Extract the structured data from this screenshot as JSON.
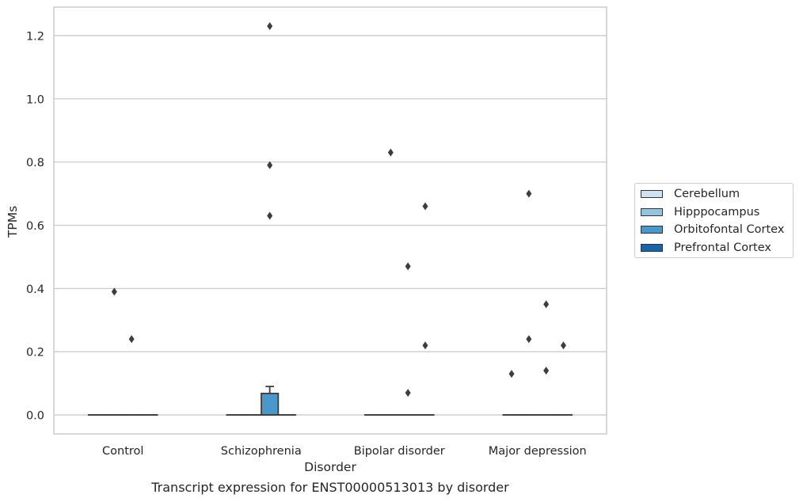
{
  "chart_data": {
    "type": "box",
    "title": "",
    "caption": "Transcript expression for ENST00000513013 by disorder",
    "xlabel": "Disorder",
    "ylabel": "TPMs",
    "ylim": [
      -0.06,
      1.29
    ],
    "yticks": [
      0.0,
      0.2,
      0.4,
      0.6,
      0.8,
      1.0,
      1.2
    ],
    "ytick_labels": [
      "0.0",
      "0.2",
      "0.4",
      "0.6",
      "0.8",
      "1.0",
      "1.2"
    ],
    "categories": [
      "Control",
      "Schizophrenia",
      "Bipolar disorder",
      "Major depression"
    ],
    "grid": "horizontal",
    "legend_position": "right",
    "series": [
      {
        "name": "Cerebellum",
        "color": "#d0e1f2",
        "boxes": [
          {
            "category": "Control",
            "q1": 0,
            "median": 0,
            "q3": 0,
            "whisker_low": 0,
            "whisker_high": 0,
            "outliers": []
          },
          {
            "category": "Schizophrenia",
            "q1": 0,
            "median": 0,
            "q3": 0,
            "whisker_low": 0,
            "whisker_high": 0,
            "outliers": []
          },
          {
            "category": "Bipolar disorder",
            "q1": 0,
            "median": 0,
            "q3": 0,
            "whisker_low": 0,
            "whisker_high": 0,
            "outliers": []
          },
          {
            "category": "Major depression",
            "q1": 0,
            "median": 0,
            "q3": 0,
            "whisker_low": 0,
            "whisker_high": 0,
            "outliers": [
              0.13
            ]
          }
        ]
      },
      {
        "name": "Hipppocampus",
        "color": "#94c4df",
        "boxes": [
          {
            "category": "Control",
            "q1": 0,
            "median": 0,
            "q3": 0,
            "whisker_low": 0,
            "whisker_high": 0,
            "outliers": [
              0.39
            ]
          },
          {
            "category": "Schizophrenia",
            "q1": 0,
            "median": 0,
            "q3": 0,
            "whisker_low": 0,
            "whisker_high": 0,
            "outliers": []
          },
          {
            "category": "Bipolar disorder",
            "q1": 0,
            "median": 0,
            "q3": 0,
            "whisker_low": 0,
            "whisker_high": 0,
            "outliers": [
              0.83
            ]
          },
          {
            "category": "Major depression",
            "q1": 0,
            "median": 0,
            "q3": 0,
            "whisker_low": 0,
            "whisker_high": 0,
            "outliers": [
              0.7,
              0.24
            ]
          }
        ]
      },
      {
        "name": "Orbitofontal Cortex",
        "color": "#4a98c9",
        "boxes": [
          {
            "category": "Control",
            "q1": 0,
            "median": 0,
            "q3": 0,
            "whisker_low": 0,
            "whisker_high": 0,
            "outliers": [
              0.24
            ]
          },
          {
            "category": "Schizophrenia",
            "q1": 0,
            "median": 0,
            "q3": 0.068,
            "whisker_low": 0,
            "whisker_high": 0.09,
            "outliers": [
              1.23,
              0.79,
              0.63
            ]
          },
          {
            "category": "Bipolar disorder",
            "q1": 0,
            "median": 0,
            "q3": 0,
            "whisker_low": 0,
            "whisker_high": 0,
            "outliers": [
              0.47,
              0.07
            ]
          },
          {
            "category": "Major depression",
            "q1": 0,
            "median": 0,
            "q3": 0,
            "whisker_low": 0,
            "whisker_high": 0,
            "outliers": [
              0.35,
              0.14
            ]
          }
        ]
      },
      {
        "name": "Prefrontal Cortex",
        "color": "#1764ab",
        "boxes": [
          {
            "category": "Control",
            "q1": 0,
            "median": 0,
            "q3": 0,
            "whisker_low": 0,
            "whisker_high": 0,
            "outliers": []
          },
          {
            "category": "Schizophrenia",
            "q1": 0,
            "median": 0,
            "q3": 0,
            "whisker_low": 0,
            "whisker_high": 0,
            "outliers": []
          },
          {
            "category": "Bipolar disorder",
            "q1": 0,
            "median": 0,
            "q3": 0,
            "whisker_low": 0,
            "whisker_high": 0,
            "outliers": [
              0.66,
              0.22
            ]
          },
          {
            "category": "Major depression",
            "q1": 0,
            "median": 0,
            "q3": 0,
            "whisker_low": 0,
            "whisker_high": 0,
            "outliers": [
              0.22
            ]
          }
        ]
      }
    ]
  }
}
